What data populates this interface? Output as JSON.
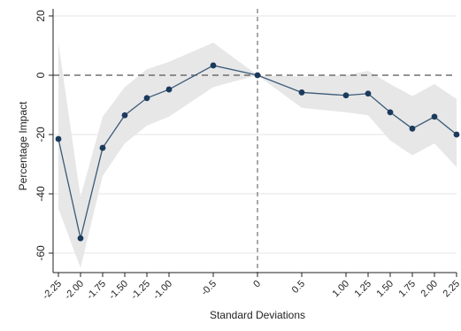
{
  "chart_data": {
    "type": "line",
    "title": "",
    "xlabel": "Standard Deviations",
    "ylabel": "Percentage Impact",
    "xlim": [
      -2.25,
      2.25
    ],
    "ylim": [
      -67,
      22
    ],
    "x_ticks": [
      {
        "value": -2.25,
        "label": "-2.25"
      },
      {
        "value": -2.0,
        "label": "-2.00"
      },
      {
        "value": -1.75,
        "label": "-1.75"
      },
      {
        "value": -1.5,
        "label": "-1.50"
      },
      {
        "value": -1.25,
        "label": "-1.25"
      },
      {
        "value": -1.0,
        "label": "-1.00"
      },
      {
        "value": -0.5,
        "label": "-0.5"
      },
      {
        "value": 0,
        "label": "0"
      },
      {
        "value": 0.5,
        "label": "0.5"
      },
      {
        "value": 1.0,
        "label": "1.00"
      },
      {
        "value": 1.25,
        "label": "1.25"
      },
      {
        "value": 1.5,
        "label": "1.50"
      },
      {
        "value": 1.75,
        "label": "1.75"
      },
      {
        "value": 2.0,
        "label": "2.00"
      },
      {
        "value": 2.25,
        "label": "2.25"
      }
    ],
    "y_ticks": [
      {
        "value": 20,
        "label": "20"
      },
      {
        "value": 0,
        "label": "0"
      },
      {
        "value": -20,
        "label": "-20"
      },
      {
        "value": -40,
        "label": "-40"
      },
      {
        "value": -60,
        "label": "-60"
      }
    ],
    "grid": true,
    "reference_lines": {
      "y": 0,
      "x": 0,
      "style": "dashed"
    },
    "series": [
      {
        "x": [
          -2.25,
          -2.0,
          -1.75,
          -1.5,
          -1.25,
          -1.0,
          -0.5,
          0,
          0.5,
          1.0,
          1.25,
          1.5,
          1.75,
          2.0,
          2.25
        ],
        "values": [
          -21.5,
          -55,
          -24.5,
          -13.5,
          -7.7,
          -4.8,
          3.3,
          0,
          -5.8,
          -6.8,
          -6.2,
          -12.5,
          -18,
          -14,
          -20
        ]
      }
    ],
    "confidence_band": {
      "x": [
        -2.25,
        -2.0,
        -1.75,
        -1.5,
        -1.25,
        -1.0,
        -0.5,
        0,
        0.5,
        1.0,
        1.25,
        1.5,
        1.75,
        2.0,
        2.25
      ],
      "upper": [
        11,
        -41,
        -14,
        -4,
        2,
        4.5,
        11,
        0,
        -0.5,
        0,
        1.5,
        -3,
        -7,
        -3,
        -8
      ],
      "lower": [
        -45,
        -65,
        -34,
        -23,
        -17,
        -14,
        -4,
        0,
        -11,
        -12.5,
        -13.5,
        -22,
        -27,
        -23,
        -31
      ]
    },
    "colors": {
      "line": "#3a5a78",
      "marker": "#1b3a5c",
      "band": "#e7e7e7",
      "grid": "#e4e4e4",
      "axis": "#222222",
      "ref_line": "#555555"
    }
  }
}
